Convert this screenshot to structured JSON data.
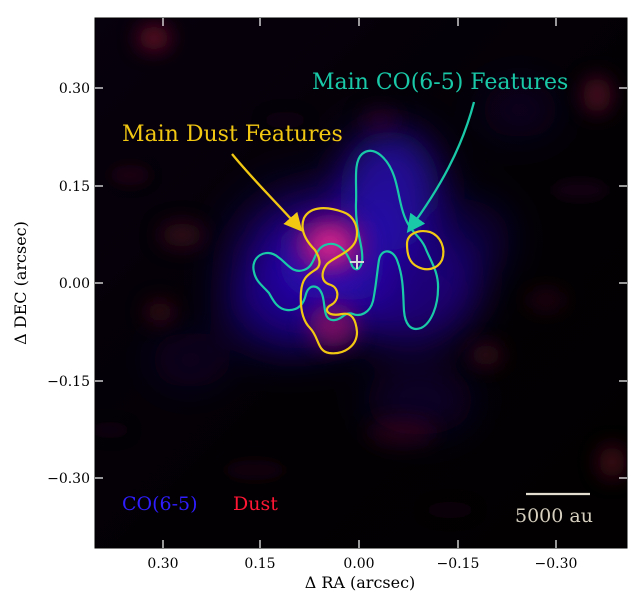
{
  "figure": {
    "xlabel": "Δ RA (arcsec)",
    "ylabel": "Δ DEC (arcsec)",
    "x_ticks": [
      "0.30",
      "0.15",
      "0.00",
      "−0.15",
      "−0.30"
    ],
    "y_ticks": [
      "0.30",
      "0.15",
      "0.00",
      "−0.15",
      "−0.30"
    ],
    "x_range": [
      0.4,
      -0.4
    ],
    "y_range": [
      -0.4,
      0.4
    ],
    "annotations": {
      "co_label": "Main CO(6-5) Features",
      "dust_label": "Main Dust Features"
    },
    "legend": {
      "co": "CO(6-5)",
      "dust": "Dust"
    },
    "scale_bar": {
      "label": "5000 au"
    },
    "colors": {
      "co_contour": "#19c9a8",
      "dust_contour": "#f2c813",
      "co_emission": "#3b10ff",
      "dust_emission": "#ff1e78",
      "background": "#000000"
    }
  }
}
